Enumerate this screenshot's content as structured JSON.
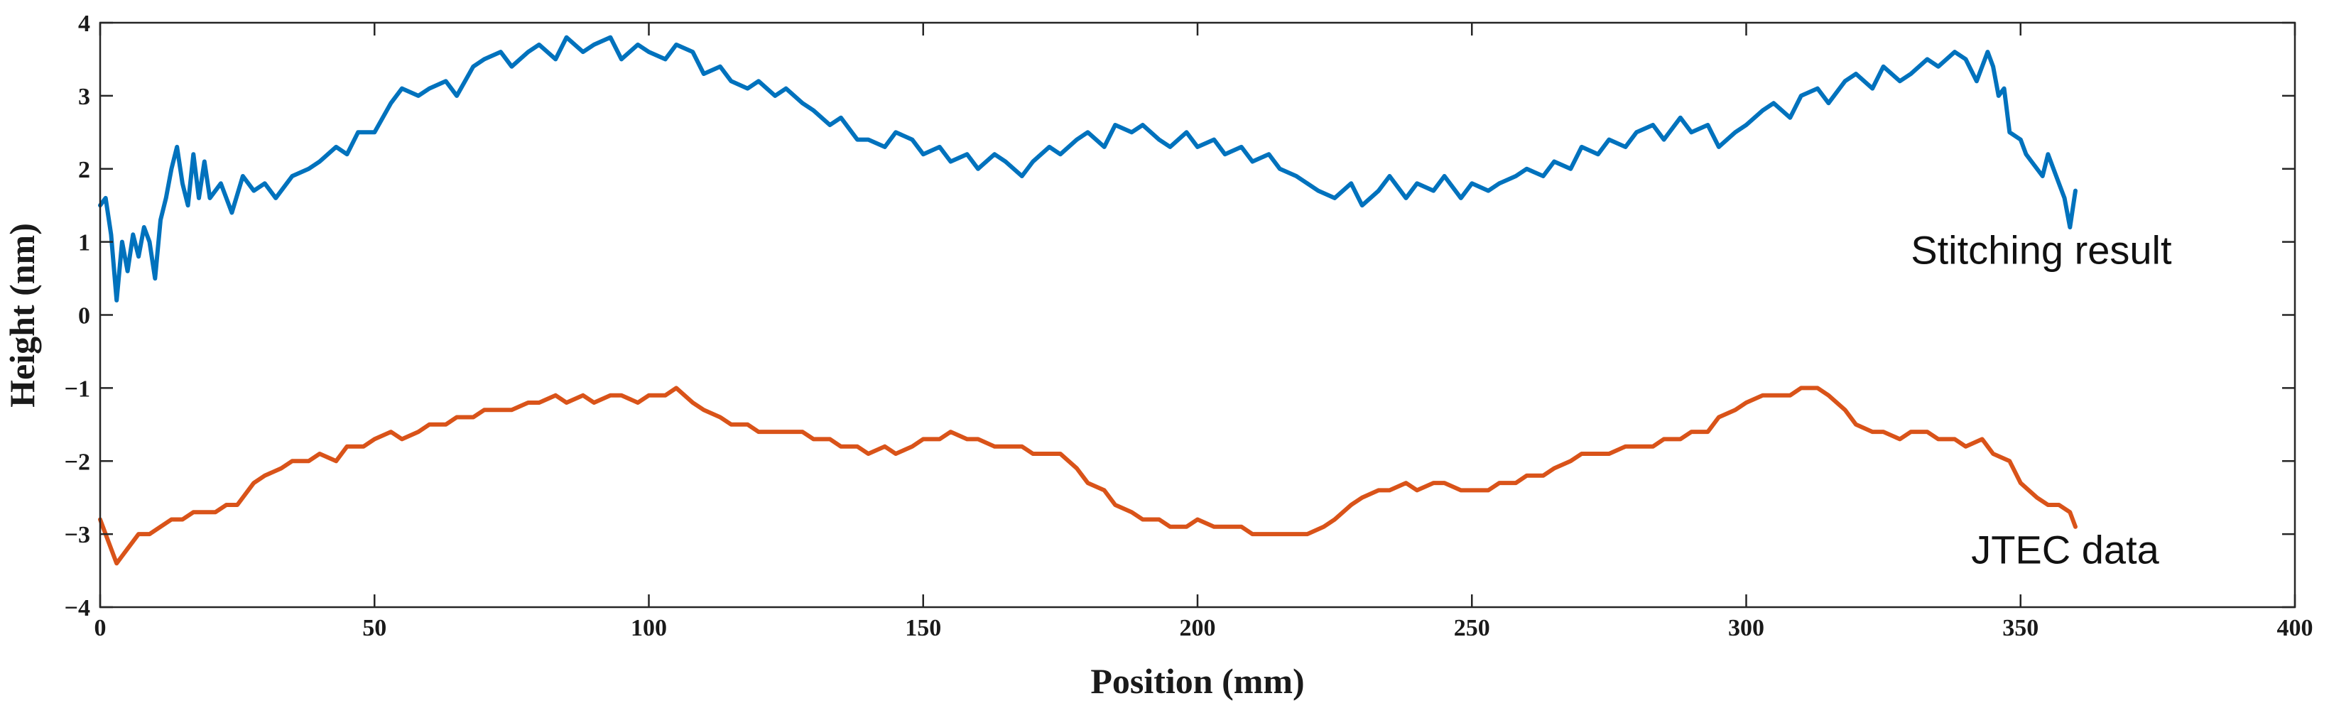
{
  "chart_data": {
    "type": "line",
    "title": "",
    "xlabel": "Position (mm)",
    "ylabel": "Height (nm)",
    "xlim": [
      0,
      400
    ],
    "ylim": [
      -4,
      4
    ],
    "x_ticks": [
      0,
      50,
      100,
      150,
      200,
      250,
      300,
      350,
      400
    ],
    "y_ticks": [
      -4,
      -3,
      -2,
      -1,
      0,
      1,
      2,
      3,
      4
    ],
    "x_tick_labels": [
      "0",
      "50",
      "100",
      "150",
      "200",
      "250",
      "300",
      "350",
      "400"
    ],
    "y_tick_labels": [
      "−4",
      "−3",
      "−2",
      "−1",
      "0",
      "1",
      "2",
      "3",
      "4"
    ],
    "grid": false,
    "series": [
      {
        "color": "#0072bd",
        "x": [
          0,
          1,
          2,
          3,
          4,
          5,
          6,
          7,
          8,
          9,
          10,
          11,
          12,
          13,
          14,
          15,
          16,
          17,
          18,
          19,
          20,
          22,
          24,
          26,
          28,
          30,
          32,
          35,
          38,
          40,
          43,
          45,
          47,
          50,
          53,
          55,
          58,
          60,
          63,
          65,
          68,
          70,
          73,
          75,
          78,
          80,
          83,
          85,
          88,
          90,
          93,
          95,
          98,
          100,
          103,
          105,
          108,
          110,
          113,
          115,
          118,
          120,
          123,
          125,
          128,
          130,
          133,
          135,
          138,
          140,
          143,
          145,
          148,
          150,
          153,
          155,
          158,
          160,
          163,
          165,
          168,
          170,
          173,
          175,
          178,
          180,
          183,
          185,
          188,
          190,
          193,
          195,
          198,
          200,
          203,
          205,
          208,
          210,
          213,
          215,
          218,
          220,
          222,
          225,
          228,
          230,
          233,
          235,
          238,
          240,
          243,
          245,
          248,
          250,
          253,
          255,
          258,
          260,
          263,
          265,
          268,
          270,
          273,
          275,
          278,
          280,
          283,
          285,
          288,
          290,
          293,
          295,
          298,
          300,
          303,
          305,
          308,
          310,
          313,
          315,
          318,
          320,
          323,
          325,
          328,
          330,
          333,
          335,
          338,
          340,
          342,
          344,
          345,
          346,
          347,
          348,
          350,
          351,
          352,
          354,
          355,
          356,
          357,
          358,
          359,
          360
        ],
        "y": [
          1.5,
          1.6,
          1.1,
          0.2,
          1.0,
          0.6,
          1.1,
          0.8,
          1.2,
          1.0,
          0.5,
          1.3,
          1.6,
          2.0,
          2.3,
          1.8,
          1.5,
          2.2,
          1.6,
          2.1,
          1.6,
          1.8,
          1.4,
          1.9,
          1.7,
          1.8,
          1.6,
          1.9,
          2.0,
          2.1,
          2.3,
          2.2,
          2.5,
          2.5,
          2.9,
          3.1,
          3.0,
          3.1,
          3.2,
          3.0,
          3.4,
          3.5,
          3.6,
          3.4,
          3.6,
          3.7,
          3.5,
          3.8,
          3.6,
          3.7,
          3.8,
          3.5,
          3.7,
          3.6,
          3.5,
          3.7,
          3.6,
          3.3,
          3.4,
          3.2,
          3.1,
          3.2,
          3.0,
          3.1,
          2.9,
          2.8,
          2.6,
          2.7,
          2.4,
          2.4,
          2.3,
          2.5,
          2.4,
          2.2,
          2.3,
          2.1,
          2.2,
          2.0,
          2.2,
          2.1,
          1.9,
          2.1,
          2.3,
          2.2,
          2.4,
          2.5,
          2.3,
          2.6,
          2.5,
          2.6,
          2.4,
          2.3,
          2.5,
          2.3,
          2.4,
          2.2,
          2.3,
          2.1,
          2.2,
          2.0,
          1.9,
          1.8,
          1.7,
          1.6,
          1.8,
          1.5,
          1.7,
          1.9,
          1.6,
          1.8,
          1.7,
          1.9,
          1.6,
          1.8,
          1.7,
          1.8,
          1.9,
          2.0,
          1.9,
          2.1,
          2.0,
          2.3,
          2.2,
          2.4,
          2.3,
          2.5,
          2.6,
          2.4,
          2.7,
          2.5,
          2.6,
          2.3,
          2.5,
          2.6,
          2.8,
          2.9,
          2.7,
          3.0,
          3.1,
          2.9,
          3.2,
          3.3,
          3.1,
          3.4,
          3.2,
          3.3,
          3.5,
          3.4,
          3.6,
          3.5,
          3.2,
          3.6,
          3.4,
          3.0,
          3.1,
          2.5,
          2.4,
          2.2,
          2.1,
          1.9,
          2.2,
          2.0,
          1.8,
          1.6,
          1.2,
          1.7
        ]
      },
      {
        "color": "#d95319",
        "x": [
          0,
          1,
          2,
          3,
          4,
          5,
          7,
          9,
          11,
          13,
          15,
          17,
          19,
          21,
          23,
          25,
          28,
          30,
          33,
          35,
          38,
          40,
          43,
          45,
          48,
          50,
          53,
          55,
          58,
          60,
          63,
          65,
          68,
          70,
          73,
          75,
          78,
          80,
          83,
          85,
          88,
          90,
          93,
          95,
          98,
          100,
          103,
          105,
          108,
          110,
          113,
          115,
          118,
          120,
          123,
          125,
          128,
          130,
          133,
          135,
          138,
          140,
          143,
          145,
          148,
          150,
          153,
          155,
          158,
          160,
          163,
          165,
          168,
          170,
          173,
          175,
          178,
          180,
          183,
          185,
          188,
          190,
          193,
          195,
          198,
          200,
          203,
          205,
          208,
          210,
          213,
          215,
          218,
          220,
          223,
          225,
          228,
          230,
          233,
          235,
          238,
          240,
          243,
          245,
          248,
          250,
          253,
          255,
          258,
          260,
          263,
          265,
          268,
          270,
          273,
          275,
          278,
          280,
          283,
          285,
          288,
          290,
          293,
          295,
          298,
          300,
          303,
          305,
          308,
          310,
          313,
          315,
          318,
          320,
          323,
          325,
          328,
          330,
          333,
          335,
          338,
          340,
          343,
          345,
          348,
          350,
          353,
          355,
          357,
          359,
          360
        ],
        "y": [
          -2.8,
          -3.0,
          -3.2,
          -3.4,
          -3.3,
          -3.2,
          -3.0,
          -3.0,
          -2.9,
          -2.8,
          -2.8,
          -2.7,
          -2.7,
          -2.7,
          -2.6,
          -2.6,
          -2.3,
          -2.2,
          -2.1,
          -2.0,
          -2.0,
          -1.9,
          -2.0,
          -1.8,
          -1.8,
          -1.7,
          -1.6,
          -1.7,
          -1.6,
          -1.5,
          -1.5,
          -1.4,
          -1.4,
          -1.3,
          -1.3,
          -1.3,
          -1.2,
          -1.2,
          -1.1,
          -1.2,
          -1.1,
          -1.2,
          -1.1,
          -1.1,
          -1.2,
          -1.1,
          -1.1,
          -1.0,
          -1.2,
          -1.3,
          -1.4,
          -1.5,
          -1.5,
          -1.6,
          -1.6,
          -1.6,
          -1.6,
          -1.7,
          -1.7,
          -1.8,
          -1.8,
          -1.9,
          -1.8,
          -1.9,
          -1.8,
          -1.7,
          -1.7,
          -1.6,
          -1.7,
          -1.7,
          -1.8,
          -1.8,
          -1.8,
          -1.9,
          -1.9,
          -1.9,
          -2.1,
          -2.3,
          -2.4,
          -2.6,
          -2.7,
          -2.8,
          -2.8,
          -2.9,
          -2.9,
          -2.8,
          -2.9,
          -2.9,
          -2.9,
          -3.0,
          -3.0,
          -3.0,
          -3.0,
          -3.0,
          -2.9,
          -2.8,
          -2.6,
          -2.5,
          -2.4,
          -2.4,
          -2.3,
          -2.4,
          -2.3,
          -2.3,
          -2.4,
          -2.4,
          -2.4,
          -2.3,
          -2.3,
          -2.2,
          -2.2,
          -2.1,
          -2.0,
          -1.9,
          -1.9,
          -1.9,
          -1.8,
          -1.8,
          -1.8,
          -1.7,
          -1.7,
          -1.6,
          -1.6,
          -1.4,
          -1.3,
          -1.2,
          -1.1,
          -1.1,
          -1.1,
          -1.0,
          -1.0,
          -1.1,
          -1.3,
          -1.5,
          -1.6,
          -1.6,
          -1.7,
          -1.6,
          -1.6,
          -1.7,
          -1.7,
          -1.8,
          -1.7,
          -1.9,
          -2.0,
          -2.3,
          -2.5,
          -2.6,
          -2.6,
          -2.7,
          -2.9
        ]
      }
    ],
    "annotations": [
      {
        "text": "Stitching result",
        "x": 330,
        "y": 0.7
      },
      {
        "text": "JTEC data",
        "x": 341,
        "y": -3.4
      }
    ]
  }
}
